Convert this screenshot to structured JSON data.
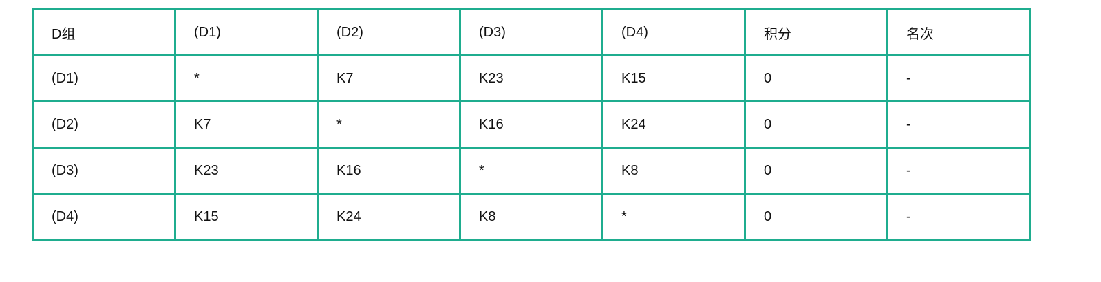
{
  "table": {
    "header": [
      "D组",
      "(D1)",
      "(D2)",
      "(D3)",
      "(D4)",
      "积分",
      "名次"
    ],
    "rows": [
      [
        "(D1)",
        "*",
        "K7",
        "K23",
        "K15",
        0,
        "-"
      ],
      [
        "(D2)",
        "K7",
        "*",
        "K16",
        "K24",
        0,
        "-"
      ],
      [
        "(D3)",
        "K23",
        "K16",
        "*",
        "K8",
        0,
        "-"
      ],
      [
        "(D4)",
        "K15",
        "K24",
        "K8",
        "*",
        0,
        "-"
      ]
    ]
  }
}
